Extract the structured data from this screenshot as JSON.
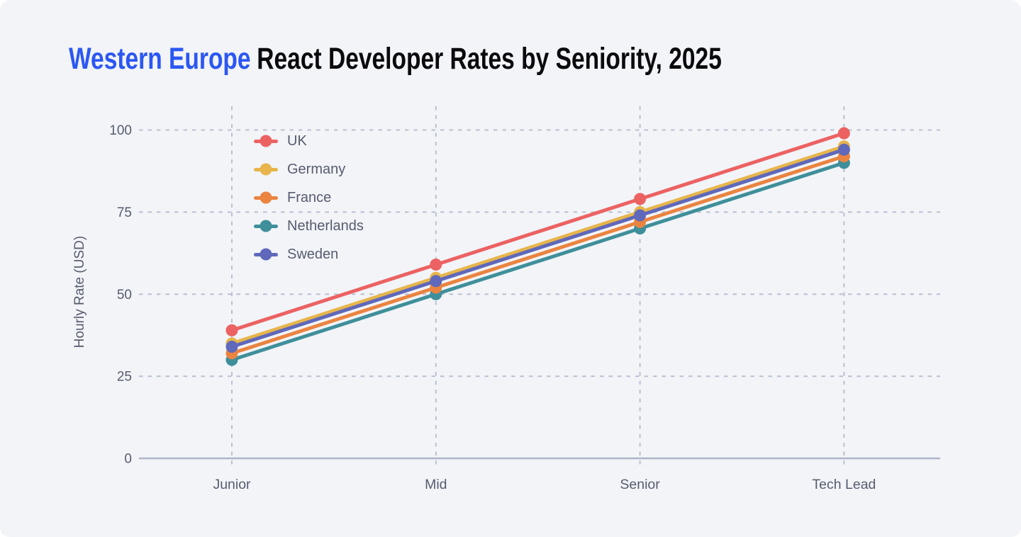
{
  "title": {
    "highlight": "Western Europe",
    "rest": "React Developer Rates by Seniority, 2025"
  },
  "colors": {
    "background": "#f2f4f8",
    "title_highlight": "#2b57f3",
    "title_text": "#0b0b0d",
    "axis_text": "#575c6e",
    "grid": "#b9c0d0",
    "baseline": "#aeb6c6"
  },
  "chart_data": {
    "type": "line",
    "title": "Western Europe React Developer Rates by Seniority, 2025",
    "xlabel": "",
    "ylabel": "Hourly Rate (USD)",
    "categories": [
      "Junior",
      "Mid",
      "Senior",
      "Tech Lead"
    ],
    "yticks": [
      0,
      25,
      50,
      75,
      100
    ],
    "ylim": [
      0,
      107
    ],
    "grid": "dashed",
    "legend_position": "inside-top-left",
    "series": [
      {
        "name": "UK",
        "color": "#ec6262",
        "values": [
          39,
          59,
          79,
          99
        ]
      },
      {
        "name": "Germany",
        "color": "#e7b54b",
        "values": [
          35,
          55,
          75,
          95
        ]
      },
      {
        "name": "France",
        "color": "#ea8440",
        "values": [
          32,
          52,
          72,
          92
        ]
      },
      {
        "name": "Netherlands",
        "color": "#3f8f9a",
        "values": [
          30,
          50,
          70,
          90
        ]
      },
      {
        "name": "Sweden",
        "color": "#5f68ba",
        "values": [
          34,
          54,
          74,
          94
        ]
      }
    ]
  }
}
